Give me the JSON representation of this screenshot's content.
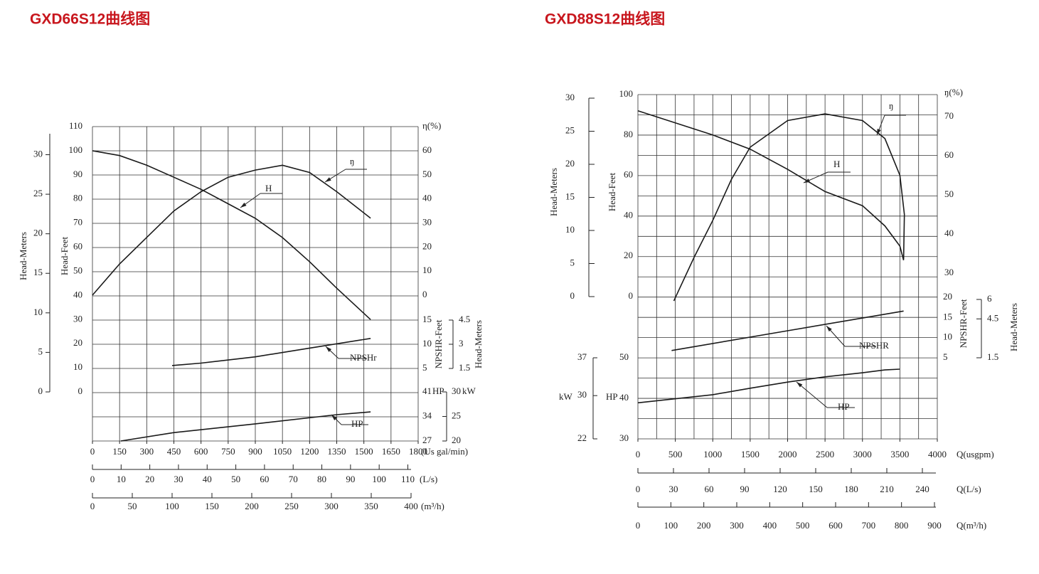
{
  "chart_data": [
    {
      "type": "line",
      "title": "GXD66S12曲线图",
      "grid": true,
      "title_color": "#c8161d",
      "color": "#1a1a1a",
      "axes": {
        "q_gpm": {
          "label": "(Us gal/min)",
          "lim": [
            0,
            1800
          ],
          "ticks": [
            0,
            150,
            300,
            450,
            600,
            750,
            900,
            1050,
            1200,
            1350,
            1500,
            1650,
            1800
          ]
        },
        "q_ls": {
          "label": "(L/s)",
          "lim": [
            0,
            110
          ],
          "ticks": [
            0,
            10,
            20,
            30,
            40,
            50,
            60,
            70,
            80,
            90,
            100,
            110
          ]
        },
        "q_m3h": {
          "label": "(m³/h)",
          "lim": [
            0,
            400
          ],
          "ticks": [
            0,
            50,
            100,
            150,
            200,
            250,
            300,
            350,
            400
          ]
        },
        "head_feet": {
          "label": "Head-Feet",
          "lim": [
            0,
            110
          ],
          "ticks": [
            0,
            10,
            20,
            30,
            40,
            50,
            60,
            70,
            80,
            90,
            100,
            110
          ]
        },
        "head_meters": {
          "label": "Head-Meters",
          "lim": [
            0,
            30
          ],
          "ticks": [
            0,
            5,
            10,
            15,
            20,
            25,
            30
          ]
        },
        "eta": {
          "label": "η(%)",
          "lim": [
            0,
            60
          ],
          "ticks": [
            0,
            10,
            20,
            30,
            40,
            50,
            60
          ]
        },
        "npsh_feet": {
          "label": "NPSHR-Feet",
          "lim": [
            5,
            15
          ],
          "ticks": [
            5,
            10,
            15
          ]
        },
        "npsh_meters": {
          "label": "Head-Meters",
          "lim": [
            1.5,
            4.5
          ],
          "ticks": [
            1.5,
            3,
            4.5
          ]
        },
        "hp": {
          "label": "HP",
          "lim": [
            27,
            41
          ],
          "ticks": [
            27,
            34,
            41
          ]
        },
        "kw": {
          "label": "kW",
          "lim": [
            20,
            30
          ],
          "ticks": [
            20,
            25,
            30
          ]
        }
      },
      "series": [
        {
          "name": "H",
          "axis": "head_feet",
          "x": [
            0,
            150,
            300,
            450,
            600,
            750,
            900,
            1050,
            1200,
            1350,
            1537
          ],
          "values": [
            100,
            98,
            94,
            89,
            84,
            78,
            72,
            64,
            54,
            43,
            30
          ]
        },
        {
          "name": "ŋ",
          "axis": "eta",
          "x": [
            0,
            150,
            300,
            450,
            600,
            750,
            900,
            1050,
            1200,
            1350,
            1537
          ],
          "values": [
            0,
            13,
            24,
            35,
            43,
            49,
            52,
            54,
            51,
            43,
            32
          ]
        },
        {
          "name": "NPSHr",
          "axis": "npsh_feet",
          "x": [
            440,
            600,
            900,
            1200,
            1537
          ],
          "values": [
            5.6,
            6.1,
            7.4,
            9.2,
            11.2
          ]
        },
        {
          "name": "HP",
          "axis": "hp",
          "x": [
            157,
            450,
            900,
            1350,
            1537
          ],
          "values": [
            27,
            29.4,
            31.9,
            34.5,
            35.3
          ]
        }
      ]
    },
    {
      "type": "line",
      "title": "GXD88S12曲线图",
      "grid": true,
      "title_color": "#c8161d",
      "color": "#1a1a1a",
      "axes": {
        "q_gpm": {
          "label": "Q(usgpm)",
          "lim": [
            0,
            4000
          ],
          "ticks": [
            0,
            500,
            1000,
            1500,
            2000,
            2500,
            3000,
            3500,
            4000
          ]
        },
        "q_ls": {
          "label": "Q(L/s)",
          "lim": [
            0,
            240
          ],
          "ticks": [
            0,
            30,
            60,
            90,
            120,
            150,
            180,
            210,
            240
          ]
        },
        "q_m3h": {
          "label": "Q(m³/h)",
          "lim": [
            0,
            900
          ],
          "ticks": [
            0,
            100,
            200,
            300,
            400,
            500,
            600,
            700,
            800,
            900
          ]
        },
        "head_feet": {
          "label": "Head-Feet",
          "lim": [
            0,
            100
          ],
          "ticks": [
            0,
            20,
            40,
            60,
            80,
            100
          ]
        },
        "head_meters": {
          "label": "Head-Meters",
          "lim": [
            0,
            30
          ],
          "ticks": [
            0,
            5,
            10,
            15,
            20,
            25,
            30
          ]
        },
        "eta": {
          "label": "ŋ(%)",
          "lim": [
            30,
            70
          ],
          "ticks": [
            30,
            40,
            50,
            60,
            70
          ]
        },
        "npsh_feet": {
          "label": "NPSHR-Feet",
          "lim": [
            5,
            20
          ],
          "ticks": [
            5,
            10,
            15,
            20
          ]
        },
        "npsh_meters": {
          "label": "Head-Meters",
          "lim": [
            1.5,
            6
          ],
          "ticks": [
            1.5,
            4.5,
            6
          ]
        },
        "hp": {
          "label": "HP",
          "lim": [
            30,
            50
          ],
          "ticks": [
            30,
            40,
            50
          ]
        },
        "kw": {
          "label": "kW",
          "lim": [
            22,
            37
          ],
          "ticks": [
            22,
            30,
            37
          ]
        }
      },
      "series": [
        {
          "name": "ŋ",
          "axis": "eta",
          "x": [
            480,
            750,
            1000,
            1250,
            1500,
            2000,
            2500,
            3000,
            3300,
            3500,
            3560,
            3550
          ],
          "values": [
            22.9,
            34,
            43.5,
            54,
            62.2,
            69,
            70.7,
            69,
            64.4,
            55,
            45,
            33.5
          ]
        },
        {
          "name": "H",
          "axis": "head_feet",
          "x": [
            0,
            500,
            1000,
            1500,
            2000,
            2500,
            3000,
            3300,
            3500,
            3550
          ],
          "values": [
            92,
            86,
            80,
            73,
            63,
            52,
            45,
            35,
            25,
            18
          ]
        },
        {
          "name": "NPSHR",
          "axis": "npsh_feet",
          "x": [
            450,
            2000,
            3550
          ],
          "values": [
            6.8,
            11.7,
            16.6
          ]
        },
        {
          "name": "HP",
          "axis": "hp",
          "x": [
            0,
            1000,
            1500,
            2000,
            2500,
            3000,
            3300,
            3500
          ],
          "values": [
            38.9,
            40.9,
            42.5,
            44,
            45.3,
            46.3,
            47,
            47.2
          ]
        }
      ]
    }
  ]
}
